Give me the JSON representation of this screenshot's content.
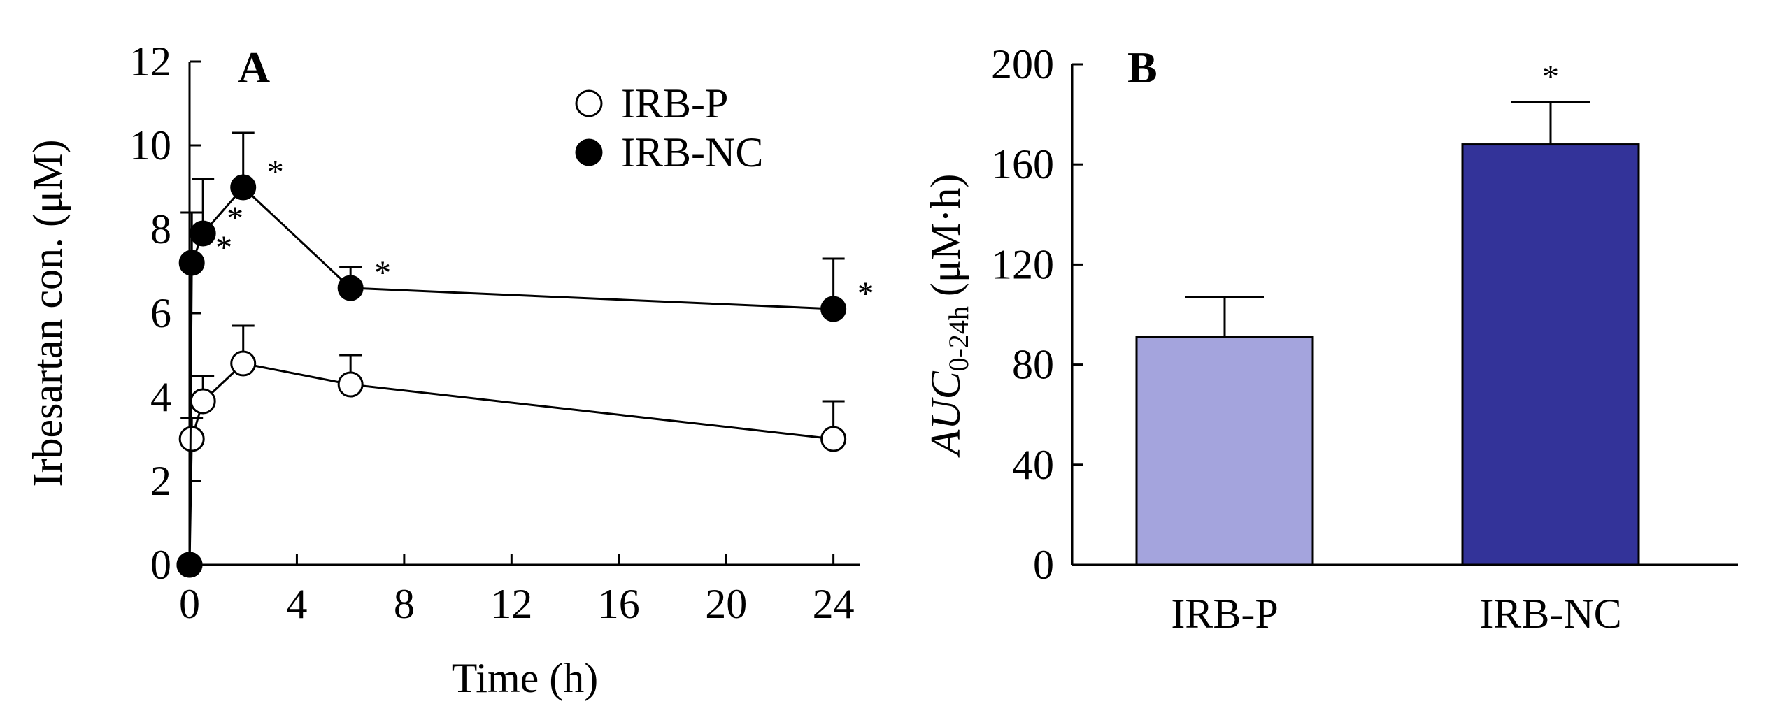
{
  "chart_data": [
    {
      "panel": "A",
      "type": "line",
      "xlabel": "Time (h)",
      "ylabel": "Irbesartan con. (μM)",
      "xlim": [
        0,
        25
      ],
      "ylim": [
        0,
        12
      ],
      "xticks": [
        0,
        4,
        8,
        12,
        16,
        20,
        24
      ],
      "yticks": [
        0,
        2,
        4,
        6,
        8,
        10,
        12
      ],
      "legend_position": "top-right",
      "series": [
        {
          "name": "IRB-P",
          "marker": "open-circle",
          "x": [
            0,
            0.083,
            0.5,
            2,
            6,
            24
          ],
          "y": [
            0,
            3.0,
            3.9,
            4.8,
            4.3,
            3.0
          ],
          "err": [
            0,
            0.5,
            0.6,
            0.9,
            0.7,
            0.9
          ],
          "significance": [
            "",
            "",
            "",
            "",
            "",
            ""
          ]
        },
        {
          "name": "IRB-NC",
          "marker": "filled-circle",
          "x": [
            0,
            0.083,
            0.5,
            2,
            6,
            24
          ],
          "y": [
            0,
            7.2,
            7.9,
            9.0,
            6.6,
            6.1
          ],
          "err": [
            0,
            1.2,
            1.3,
            1.3,
            0.5,
            1.2
          ],
          "significance": [
            "",
            "*",
            "*",
            "*",
            "*",
            "*"
          ]
        }
      ]
    },
    {
      "panel": "B",
      "type": "bar",
      "ylabel_main": "AUC",
      "ylabel_sub": "0-24h",
      "ylabel_units": "(μM·h)",
      "ylim": [
        0,
        200
      ],
      "yticks": [
        0,
        40,
        80,
        120,
        160,
        200
      ],
      "categories": [
        "IRB-P",
        "IRB-NC"
      ],
      "values": [
        91,
        168
      ],
      "err": [
        16,
        17
      ],
      "colors": [
        "#a4a4dd",
        "#333399"
      ],
      "significance": [
        "",
        "*"
      ]
    }
  ]
}
